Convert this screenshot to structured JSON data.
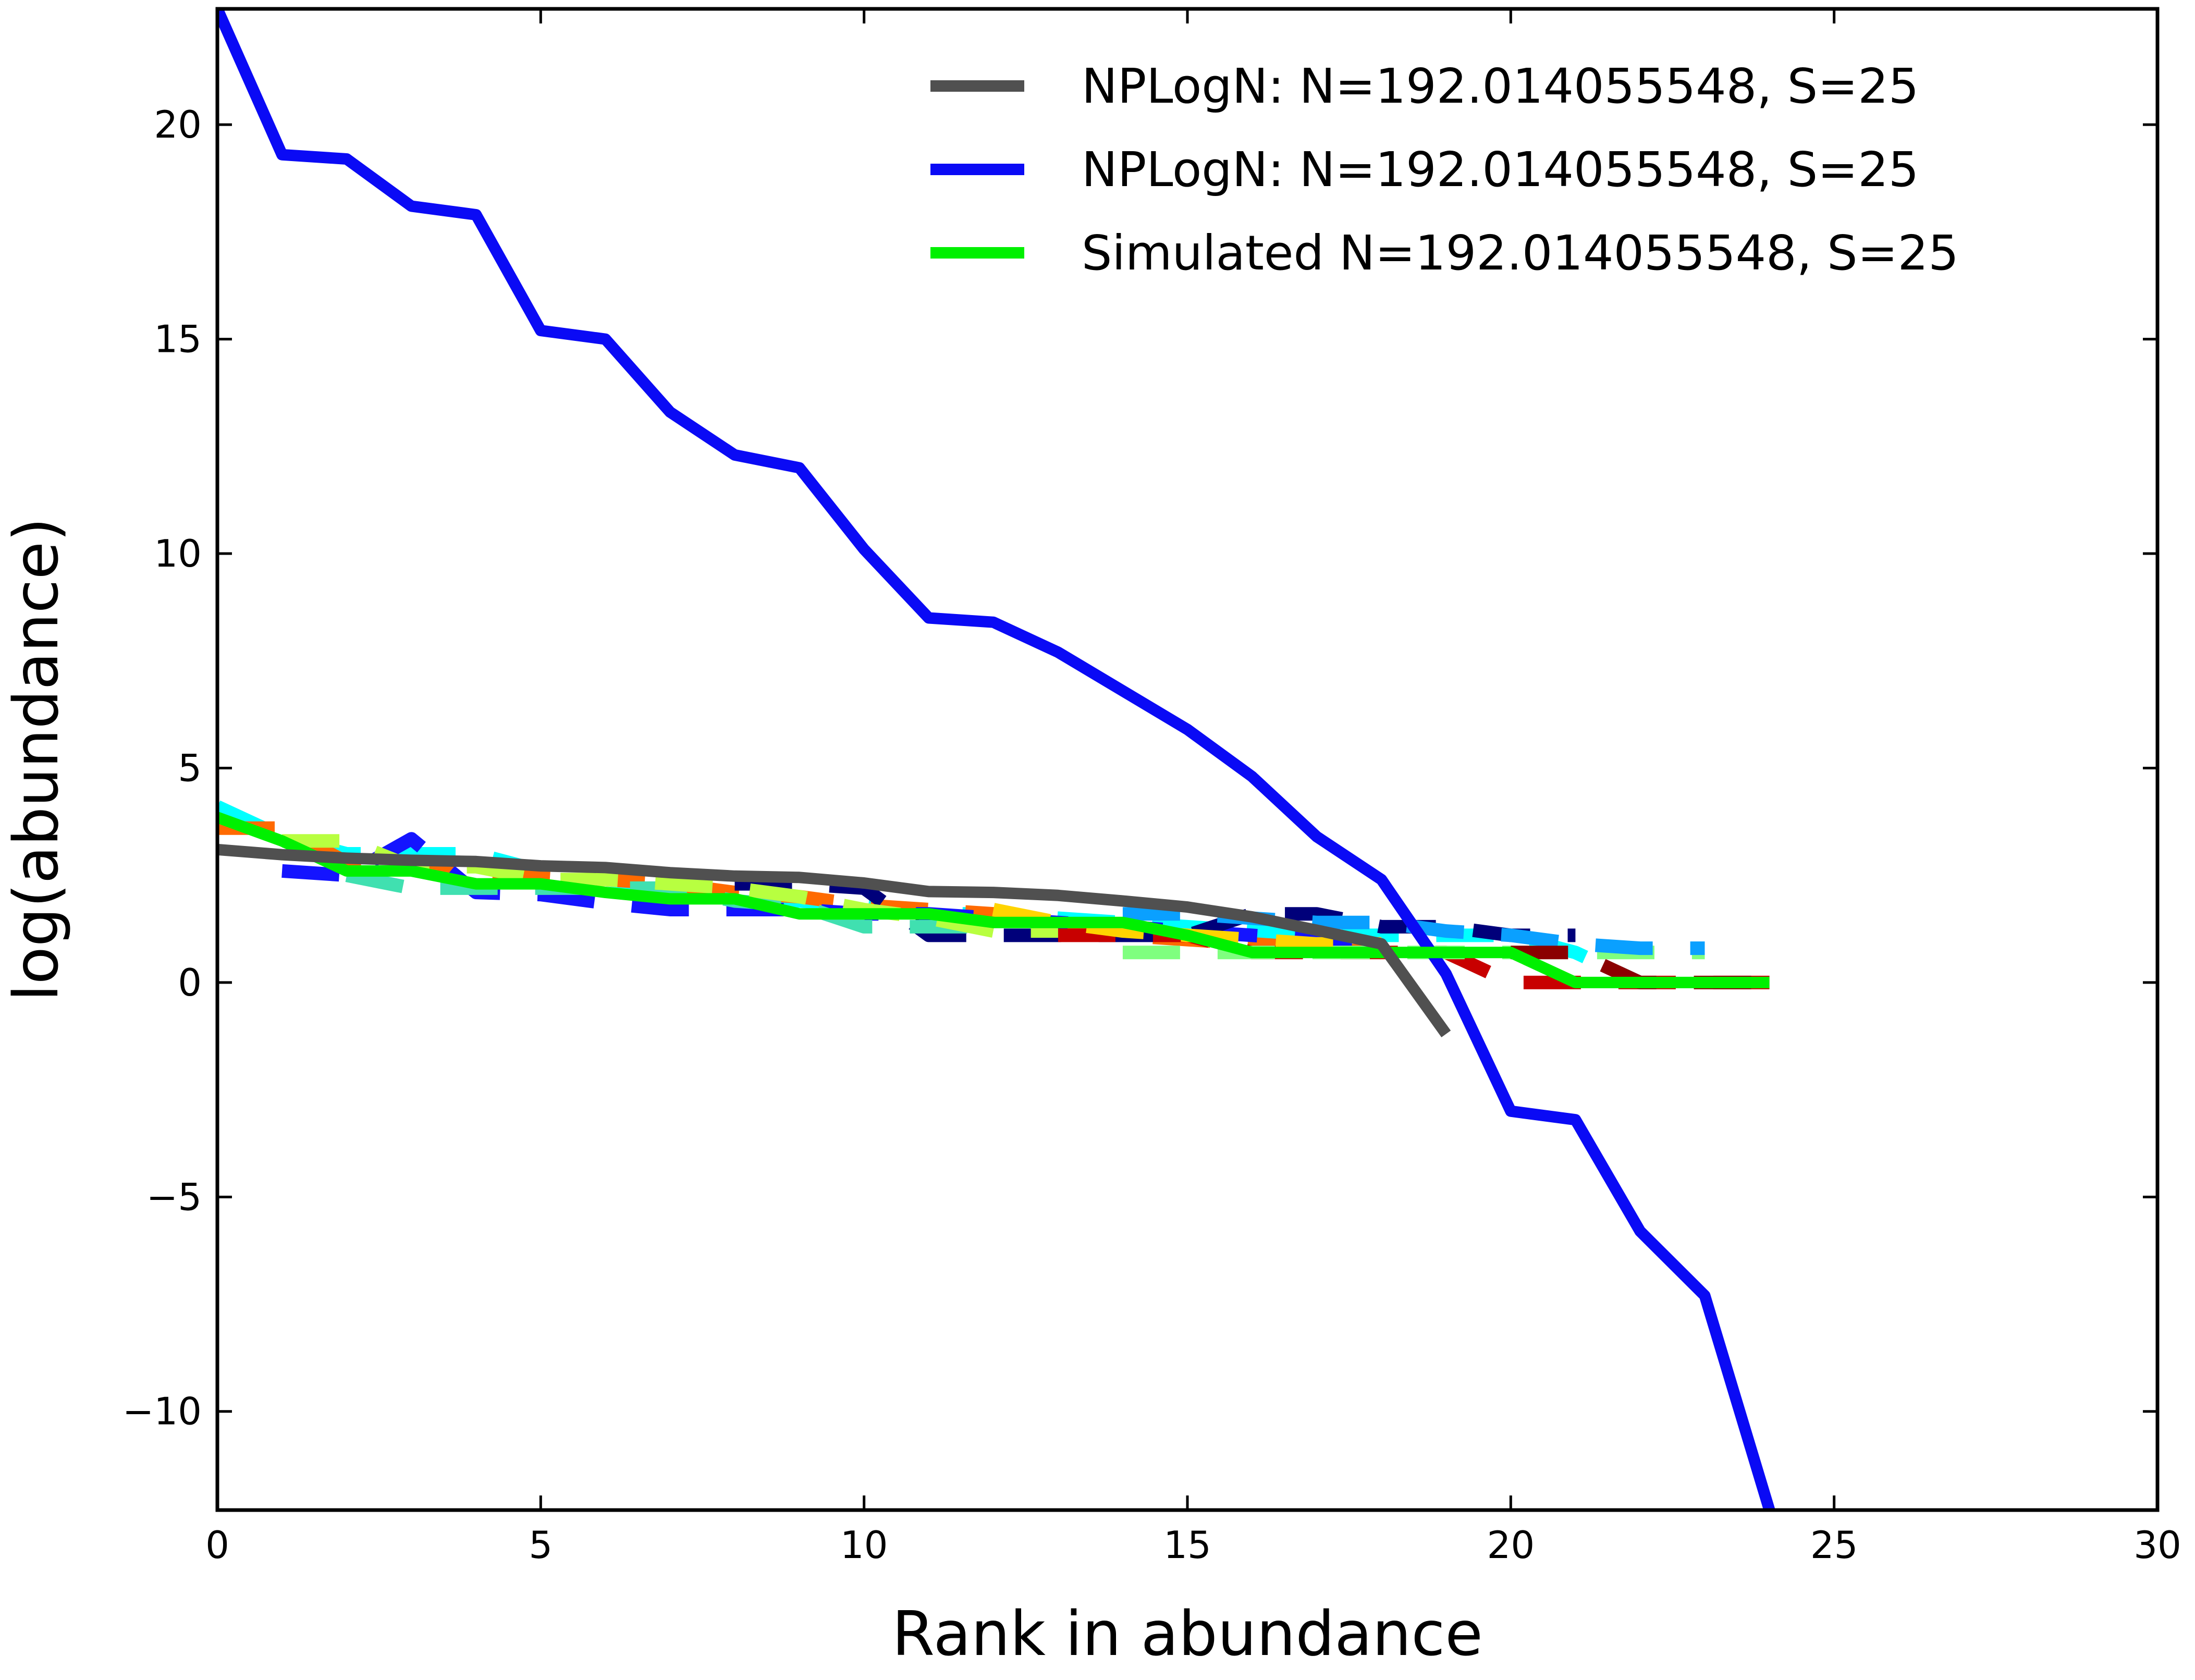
{
  "chart_data": {
    "type": "line",
    "title": "",
    "xlabel": "Rank in abundance",
    "ylabel": "log(abundance)",
    "xlim": [
      0,
      30
    ],
    "ylim": [
      -12.3,
      22.7
    ],
    "xticks": [
      0,
      5,
      10,
      15,
      20,
      25,
      30
    ],
    "yticks": [
      -10,
      -5,
      0,
      5,
      10,
      15,
      20
    ],
    "xtick_labels": [
      "0",
      "5",
      "10",
      "15",
      "20",
      "25",
      "30"
    ],
    "ytick_labels": [
      "−10",
      "−5",
      "0",
      "5",
      "10",
      "15",
      "20"
    ],
    "grid": false,
    "legend_position": "top-right",
    "legend": [
      {
        "label": "NPLogN: N=192.014055548, S=25",
        "color": "#505050"
      },
      {
        "label": "NPLogN: N=192.014055548, S=25",
        "color": "#0a0af5"
      },
      {
        "label": "Simulated N=192.014055548, S=25",
        "color": "#00f000"
      }
    ],
    "series": [
      {
        "name": "NPLogN: N=192.014055548, S=25",
        "color": "#505050",
        "style": "solid",
        "x": [
          0,
          1,
          2,
          3,
          4,
          5,
          6,
          7,
          8,
          9,
          10,
          11,
          12,
          13,
          14,
          15,
          16,
          17,
          18,
          19
        ],
        "y": [
          3.1,
          2.98,
          2.9,
          2.85,
          2.82,
          2.72,
          2.68,
          2.56,
          2.48,
          2.45,
          2.32,
          2.12,
          2.1,
          2.03,
          1.9,
          1.76,
          1.53,
          1.22,
          0.9,
          -1.2
        ]
      },
      {
        "name": "NPLogN: N=192.014055548, S=25",
        "color": "#0a0af5",
        "style": "solid",
        "x": [
          0,
          1,
          2,
          3,
          4,
          5,
          6,
          7,
          8,
          9,
          10,
          11,
          12,
          13,
          14,
          15,
          16,
          17,
          18,
          19,
          20,
          21,
          22,
          23,
          24
        ],
        "y": [
          22.7,
          19.3,
          19.2,
          18.1,
          17.9,
          15.2,
          15.0,
          13.3,
          12.3,
          12.0,
          10.1,
          8.5,
          8.4,
          7.7,
          6.8,
          5.9,
          4.8,
          3.4,
          2.4,
          0.2,
          -3.0,
          -3.2,
          -5.8,
          -7.3,
          -12.3
        ]
      },
      {
        "name": "Simulated N=192.014055548, S=25",
        "color": "#00f000",
        "style": "solid",
        "x": [
          0,
          1,
          2,
          3,
          4,
          5,
          6,
          7,
          8,
          9,
          10,
          11,
          12,
          13,
          14,
          15,
          16,
          17,
          18,
          19,
          20,
          21,
          22,
          23,
          24
        ],
        "y": [
          3.85,
          3.3,
          2.6,
          2.6,
          2.3,
          2.3,
          2.1,
          1.95,
          1.95,
          1.6,
          1.6,
          1.6,
          1.4,
          1.4,
          1.4,
          1.1,
          0.7,
          0.7,
          0.7,
          0.7,
          0.7,
          0.0,
          0.0,
          0.0,
          0.0
        ]
      }
    ],
    "dashed_series": [
      {
        "color": "#00ffff",
        "x": [
          0,
          1,
          2,
          3,
          4,
          5,
          6,
          7,
          8,
          9,
          10,
          11,
          12,
          13,
          14,
          15,
          16,
          17,
          18,
          19,
          20,
          21,
          22
        ],
        "y": [
          4.1,
          3.4,
          3.0,
          3.0,
          3.0,
          2.6,
          2.4,
          2.2,
          2.0,
          1.9,
          1.8,
          1.6,
          1.6,
          1.5,
          1.4,
          1.3,
          1.2,
          1.1,
          1.1,
          1.1,
          1.1,
          0.7,
          0.0
        ]
      },
      {
        "color": "#ff6a00",
        "x": [
          0,
          1,
          2,
          3,
          4,
          5,
          6,
          7,
          8,
          9,
          10,
          11,
          12,
          13,
          14,
          15,
          16,
          17,
          18
        ],
        "y": [
          3.6,
          3.6,
          2.8,
          2.8,
          2.6,
          2.5,
          2.4,
          2.3,
          2.1,
          2.0,
          1.8,
          1.7,
          1.6,
          1.4,
          1.1,
          1.0,
          0.9,
          0.8,
          0.7
        ]
      },
      {
        "color": "#1414ff",
        "x": [
          1,
          2,
          3,
          4,
          5,
          6,
          7,
          8,
          9,
          10,
          11,
          12,
          13,
          14,
          15,
          16,
          17,
          18
        ],
        "y": [
          2.6,
          2.5,
          3.35,
          2.1,
          2.05,
          1.85,
          1.7,
          1.7,
          1.7,
          1.6,
          1.6,
          1.5,
          1.4,
          1.3,
          1.2,
          1.1,
          1.0,
          1.0
        ]
      },
      {
        "color": "#00007a",
        "x": [
          8,
          9,
          10,
          11,
          12,
          13,
          14,
          15,
          16,
          17,
          18,
          19,
          20,
          21
        ],
        "y": [
          2.3,
          2.3,
          2.2,
          1.1,
          1.1,
          1.1,
          1.1,
          1.1,
          1.6,
          1.6,
          1.3,
          1.3,
          1.1,
          1.1
        ]
      },
      {
        "color": "#c80000",
        "x": [
          13,
          14,
          15,
          16,
          17,
          18,
          19,
          20,
          21,
          22,
          23,
          24
        ],
        "y": [
          1.1,
          1.1,
          1.1,
          0.7,
          0.7,
          0.7,
          0.7,
          0.0,
          0.0,
          0.0,
          0.0,
          0.0
        ]
      },
      {
        "color": "#7fff7f",
        "x": [
          14,
          15,
          16,
          17,
          18,
          19,
          20,
          21,
          22,
          23
        ],
        "y": [
          0.7,
          0.7,
          0.7,
          0.7,
          0.7,
          0.7,
          0.7,
          0.7,
          0.7,
          0.7
        ]
      },
      {
        "color": "#0aa0ff",
        "x": [
          14,
          15,
          16,
          17,
          18,
          19,
          20,
          21,
          22,
          23
        ],
        "y": [
          1.6,
          1.6,
          1.5,
          1.4,
          1.4,
          1.2,
          1.1,
          0.9,
          0.8,
          0.8
        ]
      },
      {
        "color": "#ffd400",
        "x": [
          12,
          13,
          14,
          15,
          16,
          17,
          18
        ],
        "y": [
          1.7,
          1.4,
          1.2,
          1.1,
          1.0,
          0.9,
          0.9
        ]
      },
      {
        "color": "#8b0000",
        "x": [
          20,
          21,
          22,
          23,
          24
        ],
        "y": [
          0.7,
          0.7,
          0.0,
          0.0,
          0.0
        ]
      },
      {
        "color": "#40e0b0",
        "x": [
          2,
          3,
          4,
          5,
          6,
          7,
          8,
          9,
          10,
          11,
          12
        ],
        "y": [
          2.5,
          2.2,
          2.2,
          2.2,
          2.2,
          2.2,
          1.9,
          1.8,
          1.3,
          1.3,
          1.3
        ]
      },
      {
        "color": "#b8ff40",
        "x": [
          1,
          2,
          3,
          4,
          5,
          6,
          7,
          8,
          9,
          10,
          11,
          12,
          13
        ],
        "y": [
          3.3,
          3.3,
          2.7,
          2.7,
          2.4,
          2.4,
          2.3,
          2.2,
          2.0,
          1.7,
          1.5,
          1.2,
          1.2
        ]
      }
    ]
  }
}
